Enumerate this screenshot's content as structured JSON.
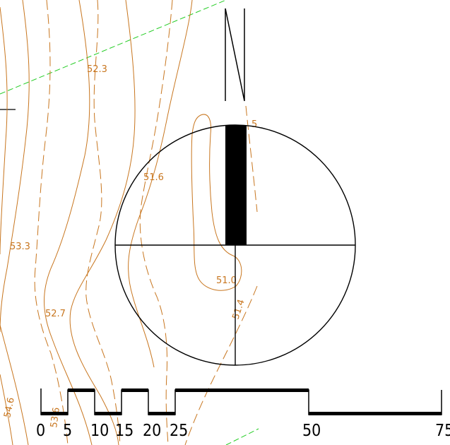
{
  "map": {
    "contour_color": "#c8761f",
    "line_color": "#000000",
    "boundary_color": "#22cc22"
  },
  "contour_labels": {
    "c1": "52.3",
    "c2": "51.6",
    "c3": "53.3",
    "c4": "51.0",
    "c5": "52.7",
    "c6": "51.4",
    "c7": "5",
    "c8": "53.6",
    "c9": "54.6"
  },
  "north_arrow": {
    "icon": "north-arrow-icon"
  },
  "scale_bar": {
    "ticks": [
      "0",
      "5",
      "10",
      "15",
      "20",
      "25",
      "50",
      "75"
    ]
  }
}
